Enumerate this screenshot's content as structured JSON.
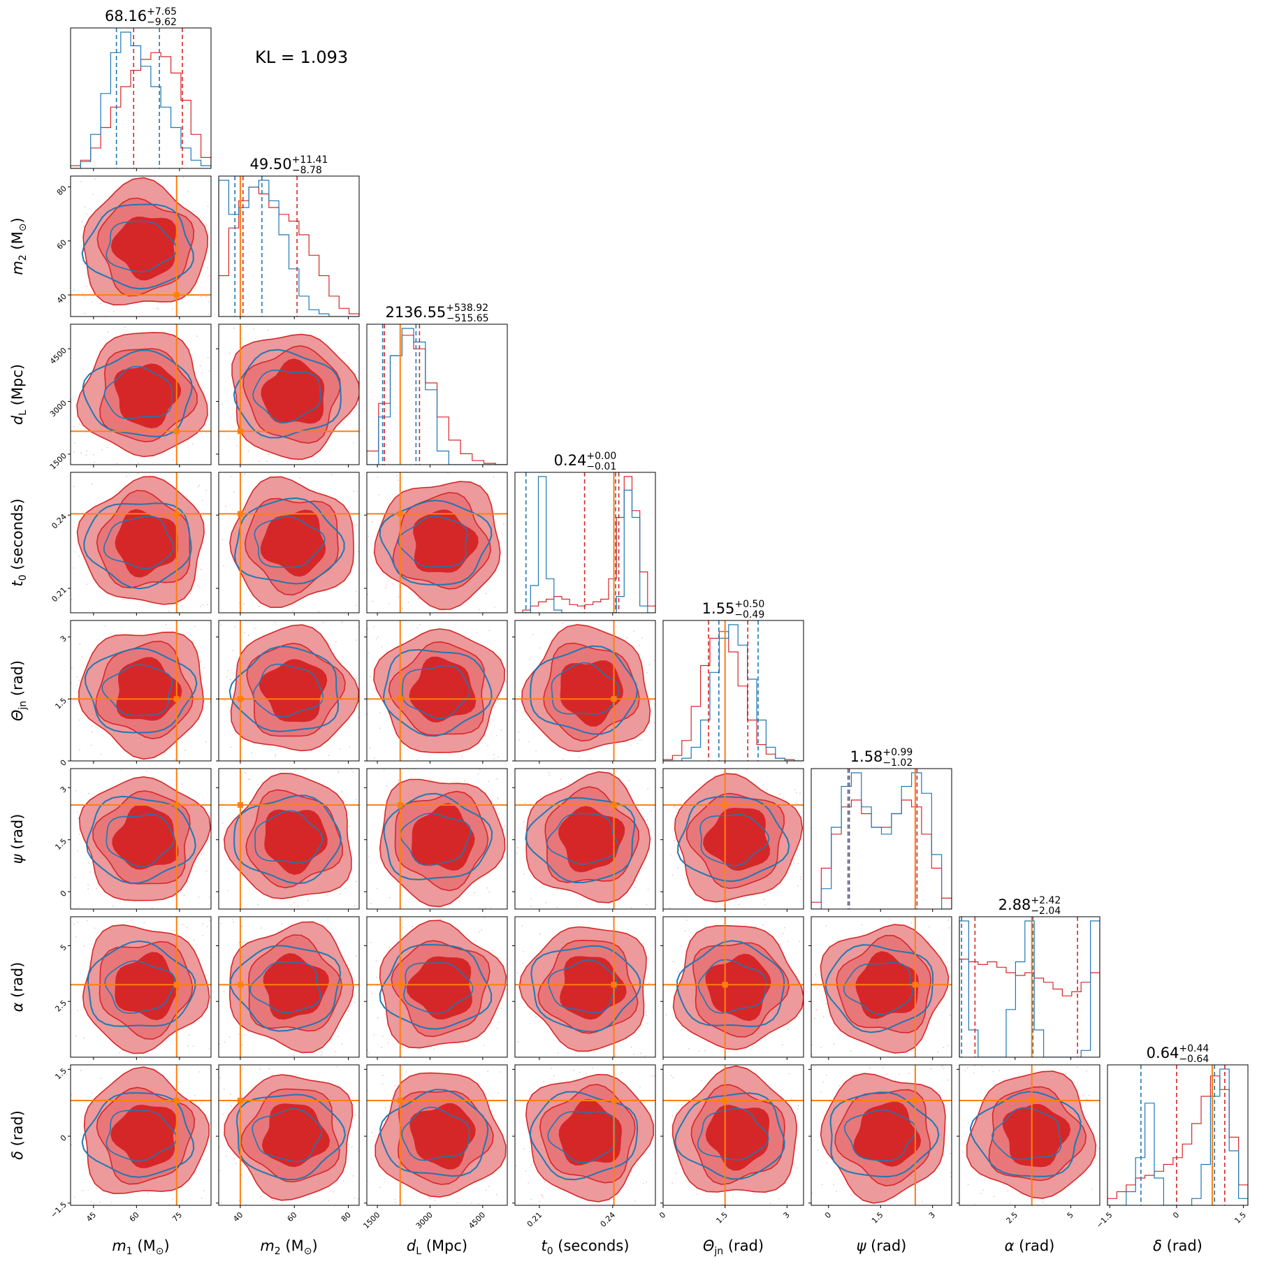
{
  "kl_label": "KL = 1.093",
  "colors": {
    "blue": "#1f77b4",
    "red": "#d62728",
    "red_light": "#ec9a9b",
    "truth": "#ff7f0e"
  },
  "params": [
    {
      "key": "m1",
      "sym": "m",
      "sub": "1",
      "unit": "(M",
      "unit_sub": "⊙",
      "unit_end": ")",
      "range": [
        37,
        86
      ],
      "truth": 74,
      "ticks": [
        45,
        60,
        75
      ],
      "title_value": "68.16",
      "title_plus": "+7.65",
      "title_minus": "−9.62",
      "blue_q": [
        53,
        68
      ],
      "red_q": [
        59,
        76
      ],
      "blue_hist": [
        0,
        0.05,
        0.25,
        0.55,
        0.85,
        1,
        0.9,
        0.75,
        0.6,
        0.45,
        0.3,
        0.15,
        0.06,
        0.02
      ],
      "red_hist": [
        0.02,
        0.06,
        0.15,
        0.3,
        0.45,
        0.6,
        0.72,
        0.8,
        0.85,
        0.82,
        0.7,
        0.5,
        0.25,
        0.08
      ]
    },
    {
      "key": "m2",
      "sym": "m",
      "sub": "2",
      "unit": "(M",
      "unit_sub": "⊙",
      "unit_end": ")",
      "range": [
        32,
        84
      ],
      "truth": 40,
      "ticks": [
        40,
        60,
        80
      ],
      "title_value": "49.50",
      "title_plus": "+11.41",
      "title_minus": "−8.78",
      "blue_q": [
        38,
        48
      ],
      "red_q": [
        41,
        61
      ],
      "blue_hist": [
        1,
        0.75,
        0.8,
        0.95,
        1,
        0.85,
        0.6,
        0.35,
        0.15,
        0.05,
        0.02,
        0,
        0,
        0
      ],
      "red_hist": [
        0.3,
        0.65,
        0.85,
        0.95,
        0.9,
        0.8,
        0.75,
        0.7,
        0.6,
        0.45,
        0.3,
        0.15,
        0.06,
        0.02
      ]
    },
    {
      "key": "dL",
      "sym": "d",
      "sub": "L",
      "unit": "(Mpc)",
      "unit_sub": "",
      "unit_end": "",
      "range": [
        1200,
        5200
      ],
      "truth": 2150,
      "ticks": [
        1500,
        3000,
        4500
      ],
      "title_value": "2136.55",
      "title_plus": "+538.92",
      "title_minus": "−515.65",
      "blue_q": [
        1650,
        2600
      ],
      "red_q": [
        1700,
        2700
      ],
      "blue_hist": [
        0,
        0.35,
        0.8,
        1,
        0.9,
        0.55,
        0.1,
        0,
        0,
        0,
        0,
        0
      ],
      "red_hist": [
        0.1,
        0.45,
        0.8,
        0.95,
        0.85,
        0.6,
        0.35,
        0.18,
        0.08,
        0.03,
        0.01,
        0
      ]
    },
    {
      "key": "t0",
      "sym": "t",
      "sub": "0",
      "unit": "(seconds)",
      "unit_sub": "",
      "unit_end": "",
      "range": [
        0.2,
        0.2575
      ],
      "truth": 0.2405,
      "ticks": [
        0.21,
        0.24
      ],
      "title_value": "0.24",
      "title_plus": "+0.00",
      "title_minus": "−0.01",
      "blue_q": [
        0.2045,
        0.2412
      ],
      "red_q": [
        0.2285,
        0.2425
      ],
      "blue_hist": [
        0,
        0,
        0.2,
        1,
        0.25,
        0.02,
        0,
        0,
        0,
        0,
        0,
        0,
        0,
        0.12,
        0.9,
        0.7,
        0.05,
        0
      ],
      "red_hist": [
        0,
        0.02,
        0.05,
        0.08,
        0.1,
        0.12,
        0.1,
        0.06,
        0.05,
        0.06,
        0.08,
        0.1,
        0.25,
        0.7,
        1,
        0.75,
        0.3,
        0.05
      ]
    },
    {
      "key": "theta",
      "sym": "Θ",
      "sub": "jn",
      "unit": "(rad)",
      "unit_sub": "",
      "unit_end": "",
      "range": [
        0,
        3.4
      ],
      "truth": 1.5,
      "ticks": [
        0.0,
        1.5,
        3.0
      ],
      "title_value": "1.55",
      "title_plus": "+0.50",
      "title_minus": "−0.49",
      "blue_q": [
        1.35,
        2.3
      ],
      "red_q": [
        1.1,
        2.05
      ],
      "blue_hist": [
        0,
        0,
        0.02,
        0.1,
        0.3,
        0.65,
        0.9,
        1,
        0.85,
        0.6,
        0.3,
        0.1,
        0.02,
        0,
        0
      ],
      "red_hist": [
        0.01,
        0.04,
        0.15,
        0.4,
        0.7,
        0.9,
        0.95,
        0.8,
        0.55,
        0.3,
        0.12,
        0.05,
        0.02,
        0.01,
        0
      ]
    },
    {
      "key": "psi",
      "sym": "ψ",
      "sub": "",
      "unit": "(rad)",
      "unit_sub": "",
      "unit_end": "",
      "range": [
        -0.5,
        3.55
      ],
      "truth": 2.5,
      "ticks": [
        0.0,
        1.5,
        3.0
      ],
      "title_value": "1.58",
      "title_plus": "+0.99",
      "title_minus": "−1.02",
      "blue_q": [
        0.56,
        2.5
      ],
      "red_q": [
        0.6,
        2.55
      ],
      "blue_hist": [
        0,
        0.15,
        0.6,
        0.9,
        1,
        0.75,
        0.6,
        0.55,
        0.7,
        0.9,
        1,
        0.85,
        0.4,
        0
      ],
      "red_hist": [
        0.05,
        0.3,
        0.55,
        0.75,
        0.8,
        0.7,
        0.6,
        0.6,
        0.7,
        0.8,
        0.75,
        0.55,
        0.3,
        0.08
      ]
    },
    {
      "key": "alpha",
      "sym": "α",
      "sub": "",
      "unit": "(rad)",
      "unit_sub": "",
      "unit_end": "",
      "range": [
        0,
        6.3
      ],
      "truth": 3.25,
      "ticks": [
        2.5,
        5.0
      ],
      "title_value": "2.88",
      "title_plus": "+2.42",
      "title_minus": "−2.04",
      "blue_q": [
        0.1,
        3.3
      ],
      "red_q": [
        0.7,
        5.3
      ],
      "blue_hist": [
        1,
        0.2,
        0,
        0,
        0,
        0.35,
        0.7,
        1,
        0.2,
        0,
        0,
        0,
        0,
        0.05,
        1
      ],
      "red_hist": [
        0.72,
        0.7,
        0.68,
        0.7,
        0.66,
        0.62,
        0.6,
        0.62,
        0.58,
        0.55,
        0.5,
        0.45,
        0.48,
        0.55,
        0.62
      ]
    },
    {
      "key": "delta",
      "sym": "δ",
      "sub": "",
      "unit": "(rad)",
      "unit_sub": "",
      "unit_end": "",
      "range": [
        -1.55,
        1.6
      ],
      "truth": 0.8,
      "ticks": [
        -1.5,
        0.0,
        1.5
      ],
      "title_value": "0.64",
      "title_plus": "+0.44",
      "title_minus": "−0.64",
      "blue_q": [
        -0.8,
        0.85
      ],
      "red_q": [
        0.0,
        1.08
      ],
      "blue_hist": [
        0,
        0,
        0.1,
        0.35,
        0.75,
        0.2,
        0,
        0,
        0,
        0.05,
        0.3,
        0.8,
        1,
        0.4,
        0.05
      ],
      "red_hist": [
        0.05,
        0.1,
        0.15,
        0.2,
        0.22,
        0.25,
        0.3,
        0.35,
        0.45,
        0.6,
        0.8,
        0.95,
        0.85,
        0.5,
        0.15
      ]
    }
  ],
  "chart_data": {
    "type": "corner",
    "title": "",
    "annotation": "KL = 1.093",
    "n_params": 8,
    "series": [
      {
        "name": "",
        "color": "#1f77b4",
        "style": "contour lines"
      },
      {
        "name": "",
        "color": "#d62728",
        "style": "filled contours"
      }
    ],
    "truth_color": "#ff7f0e",
    "grid": false,
    "legend": "none"
  }
}
